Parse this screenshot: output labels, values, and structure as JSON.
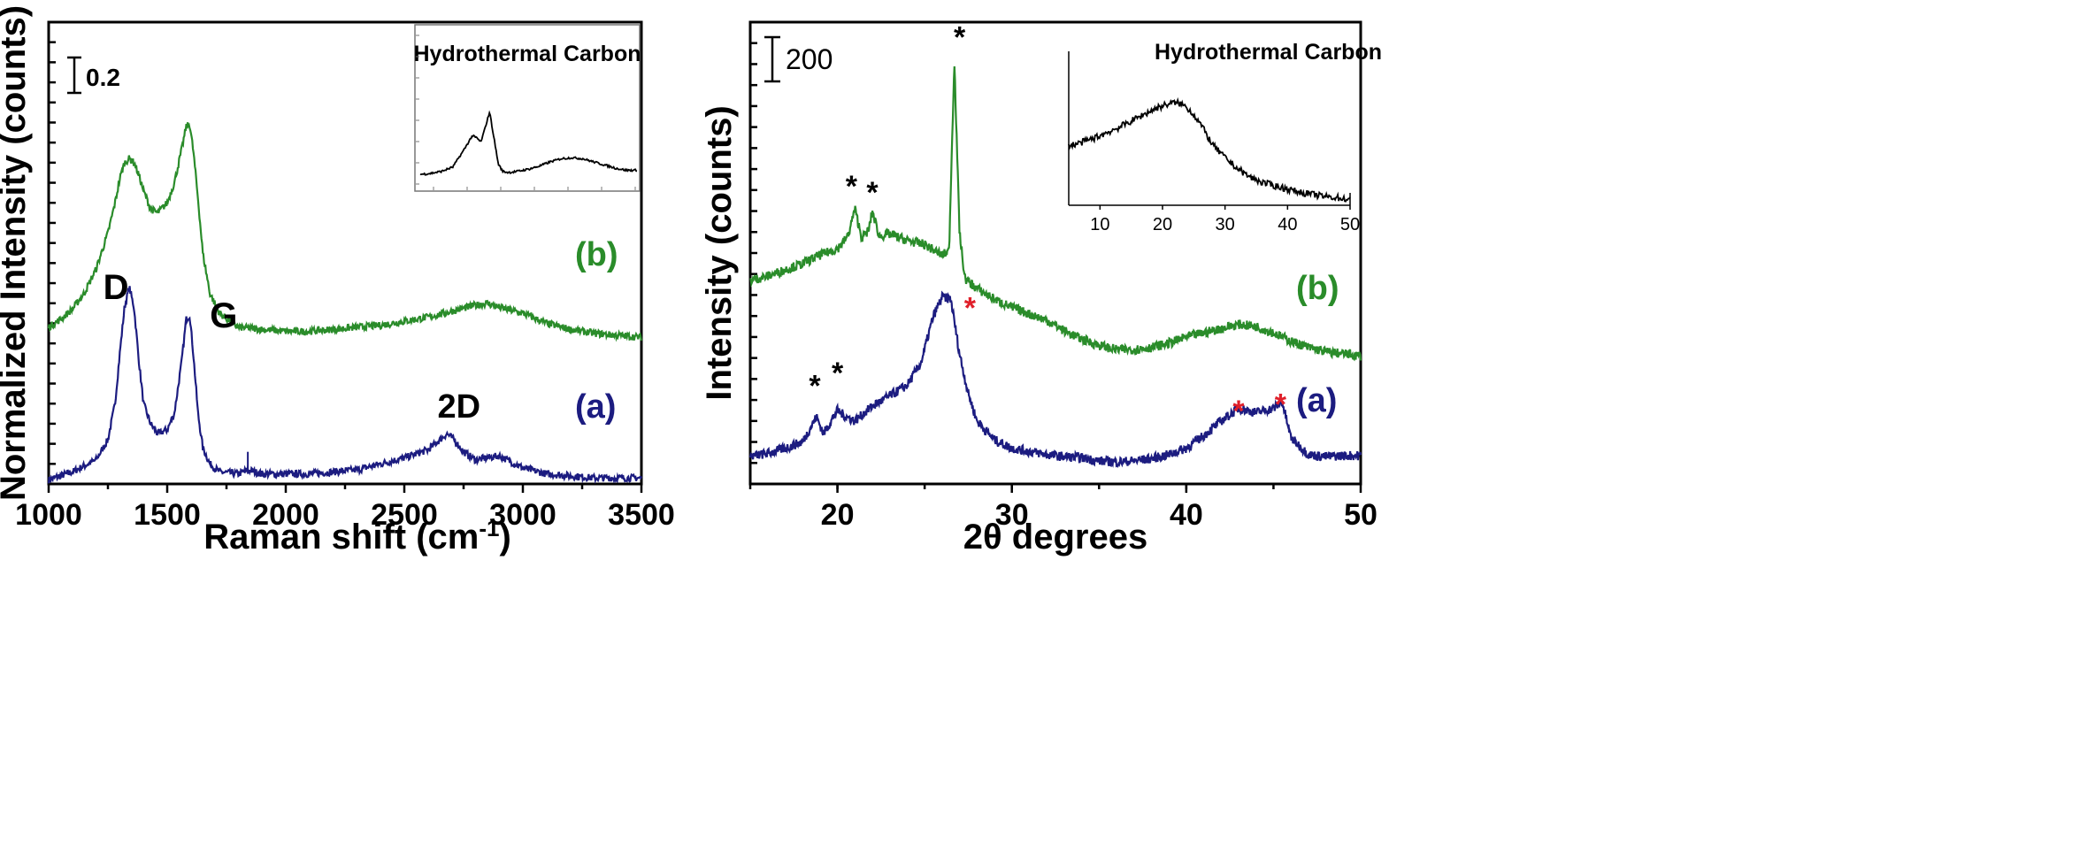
{
  "chart_data": [
    {
      "type": "line",
      "xlabel": "Raman shift (cm",
      "xlabel_sup": "-1",
      "xlabel_close": ")",
      "ylabel": "Normalized Intensity (counts)",
      "xlim": [
        1000,
        3500
      ],
      "ylim": [
        0,
        2.3
      ],
      "x_ticks": [
        "1000",
        "1500",
        "2000",
        "2500",
        "3000",
        "3500"
      ],
      "scale_bar": "0.2",
      "series": [
        {
          "name": "(a)",
          "color": "#1c1c80",
          "x": [
            1000,
            1100,
            1200,
            1250,
            1280,
            1300,
            1320,
            1340,
            1360,
            1380,
            1400,
            1430,
            1460,
            1500,
            1530,
            1560,
            1580,
            1595,
            1610,
            1630,
            1650,
            1680,
            1720,
            1800,
            1840,
            1900,
            2000,
            2100,
            2200,
            2300,
            2400,
            2500,
            2600,
            2650,
            2680,
            2710,
            2750,
            2800,
            2850,
            2900,
            2950,
            3000,
            3100,
            3200,
            3300,
            3400,
            3500
          ],
          "y": [
            0.02,
            0.06,
            0.12,
            0.22,
            0.4,
            0.65,
            0.88,
            0.98,
            0.88,
            0.62,
            0.4,
            0.3,
            0.25,
            0.27,
            0.35,
            0.6,
            0.82,
            0.84,
            0.65,
            0.35,
            0.18,
            0.1,
            0.06,
            0.05,
            0.07,
            0.05,
            0.05,
            0.05,
            0.06,
            0.07,
            0.1,
            0.13,
            0.17,
            0.22,
            0.25,
            0.22,
            0.16,
            0.12,
            0.13,
            0.14,
            0.11,
            0.08,
            0.05,
            0.04,
            0.03,
            0.03,
            0.03
          ],
          "marker_label": "(a)"
        },
        {
          "name": "(b)",
          "color": "#2a8c2a",
          "x": [
            1000,
            1050,
            1100,
            1150,
            1200,
            1250,
            1280,
            1300,
            1320,
            1340,
            1360,
            1380,
            1400,
            1430,
            1460,
            1500,
            1530,
            1560,
            1580,
            1595,
            1610,
            1630,
            1650,
            1680,
            1720,
            1800,
            1900,
            2000,
            2100,
            2200,
            2300,
            2400,
            2500,
            2600,
            2700,
            2800,
            2850,
            2900,
            3000,
            3100,
            3200,
            3300,
            3400,
            3500
          ],
          "y": [
            0.78,
            0.82,
            0.87,
            0.95,
            1.07,
            1.25,
            1.4,
            1.52,
            1.6,
            1.62,
            1.6,
            1.54,
            1.46,
            1.37,
            1.35,
            1.4,
            1.5,
            1.66,
            1.78,
            1.79,
            1.66,
            1.42,
            1.15,
            0.95,
            0.85,
            0.78,
            0.77,
            0.76,
            0.76,
            0.77,
            0.78,
            0.79,
            0.81,
            0.83,
            0.86,
            0.89,
            0.9,
            0.88,
            0.85,
            0.8,
            0.77,
            0.75,
            0.74,
            0.73
          ],
          "marker_label": "(b)"
        }
      ],
      "annotations": [
        {
          "text": "D",
          "x": 1230,
          "y": 0.92
        },
        {
          "text": "G",
          "x": 1680,
          "y": 0.78
        },
        {
          "text": "2D",
          "x": 2640,
          "y": 0.33
        }
      ],
      "inset": {
        "title": "Hydrothermal Carbon",
        "x": [
          0,
          0.05,
          0.1,
          0.15,
          0.2,
          0.24,
          0.26,
          0.28,
          0.3,
          0.32,
          0.34,
          0.36,
          0.38,
          0.4,
          0.42,
          0.45,
          0.5,
          0.55,
          0.6,
          0.65,
          0.7,
          0.75,
          0.8,
          0.85,
          0.9,
          0.95,
          1.0
        ],
        "y": [
          0.05,
          0.06,
          0.08,
          0.12,
          0.28,
          0.42,
          0.4,
          0.36,
          0.5,
          0.65,
          0.4,
          0.15,
          0.08,
          0.07,
          0.07,
          0.08,
          0.1,
          0.13,
          0.17,
          0.2,
          0.21,
          0.2,
          0.17,
          0.14,
          0.11,
          0.09,
          0.09
        ]
      }
    },
    {
      "type": "line",
      "xlabel": "2θ degrees",
      "ylabel": "Intensity (counts)",
      "xlim": [
        15,
        50
      ],
      "ylim": [
        0,
        2200
      ],
      "x_ticks": [
        "20",
        "30",
        "40",
        "50"
      ],
      "scale_bar": "200",
      "series": [
        {
          "name": "(a)",
          "color": "#1c1c80",
          "x": [
            15,
            16,
            17,
            18,
            18.8,
            19.2,
            20,
            20.5,
            21,
            22,
            23,
            24,
            24.8,
            25.5,
            26.0,
            26.5,
            27.0,
            27.5,
            28,
            29,
            30,
            31,
            32,
            33,
            34,
            35,
            36,
            37,
            38,
            39,
            40,
            41,
            42,
            43,
            44,
            45,
            45.5,
            46,
            47,
            48,
            49,
            50
          ],
          "y": [
            130,
            145,
            170,
            200,
            320,
            240,
            350,
            320,
            300,
            370,
            420,
            470,
            580,
            800,
            890,
            880,
            620,
            430,
            300,
            210,
            170,
            155,
            140,
            130,
            125,
            110,
            105,
            110,
            120,
            140,
            170,
            230,
            300,
            360,
            340,
            360,
            390,
            220,
            140,
            130,
            135,
            135
          ],
          "marker_label": "(a)"
        },
        {
          "name": "(b)",
          "color": "#2a8c2a",
          "x": [
            15,
            16,
            17,
            18,
            19,
            20,
            20.6,
            21.0,
            21.4,
            21.8,
            22.0,
            22.4,
            23,
            24,
            25,
            26,
            26.4,
            26.7,
            27.0,
            27.3,
            28,
            29,
            30,
            31,
            32,
            33,
            34,
            35,
            36,
            37,
            38,
            39,
            40,
            41,
            42,
            43,
            44,
            45,
            46,
            47,
            48,
            49,
            50
          ],
          "y": [
            970,
            990,
            1020,
            1050,
            1090,
            1120,
            1180,
            1310,
            1170,
            1210,
            1300,
            1180,
            1190,
            1160,
            1140,
            1090,
            1110,
            2020,
            1200,
            980,
            930,
            880,
            840,
            810,
            780,
            730,
            690,
            660,
            640,
            640,
            650,
            670,
            700,
            720,
            740,
            760,
            750,
            720,
            680,
            650,
            630,
            620,
            610
          ],
          "marker_label": "(b)"
        }
      ],
      "markers": [
        {
          "text": "*",
          "x": 27.0,
          "y": 2080,
          "color": "#000000"
        },
        {
          "text": "*",
          "x": 20.8,
          "y": 1370,
          "color": "#000000"
        },
        {
          "text": "*",
          "x": 22.0,
          "y": 1340,
          "color": "#000000"
        },
        {
          "text": "*",
          "x": 18.7,
          "y": 420,
          "color": "#000000"
        },
        {
          "text": "*",
          "x": 20.0,
          "y": 480,
          "color": "#000000"
        },
        {
          "text": "*",
          "x": 27.6,
          "y": 790,
          "color": "#e0202a"
        },
        {
          "text": "*",
          "x": 43.0,
          "y": 300,
          "color": "#e0202a"
        },
        {
          "text": "*",
          "x": 45.4,
          "y": 330,
          "color": "#e0202a"
        }
      ],
      "inset": {
        "title": "Hydrothermal Carbon",
        "xlim": [
          5,
          50
        ],
        "x_ticks": [
          "10",
          "20",
          "30",
          "40",
          "50"
        ],
        "x": [
          5,
          7,
          9,
          11,
          13,
          15,
          17,
          19,
          21,
          22,
          23,
          24,
          25,
          26,
          27,
          28,
          30,
          32,
          34,
          36,
          38,
          40,
          42,
          44,
          46,
          48,
          50
        ],
        "y": [
          0.55,
          0.58,
          0.62,
          0.67,
          0.72,
          0.78,
          0.84,
          0.9,
          0.94,
          0.95,
          0.94,
          0.9,
          0.84,
          0.76,
          0.66,
          0.56,
          0.44,
          0.34,
          0.26,
          0.21,
          0.18,
          0.15,
          0.12,
          0.1,
          0.08,
          0.07,
          0.05
        ]
      }
    }
  ]
}
